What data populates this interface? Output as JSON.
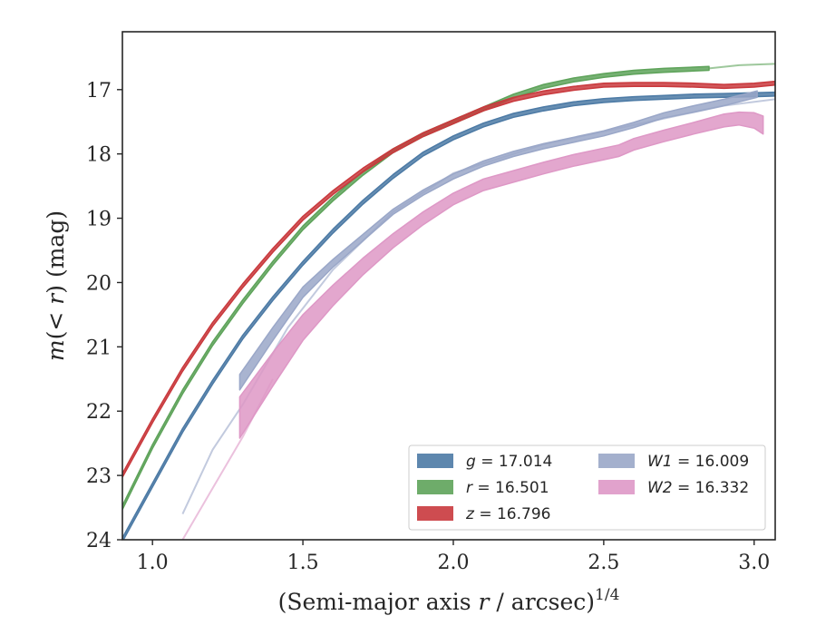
{
  "chart_data": {
    "type": "line",
    "title": "",
    "xlabel": "(Semi-major axis r / arcsec)^1/4",
    "xlabel_parts": {
      "pre": "(Semi-major axis ",
      "var": "r",
      "post": " / arcsec)",
      "sup": "1/4"
    },
    "ylabel": "m(< r) (mag)",
    "ylabel_parts": {
      "var_m": "m",
      "mid": "(< ",
      "var_r": "r",
      "post": ") (mag)"
    },
    "xlim": [
      0.9,
      3.07
    ],
    "ylim": [
      24,
      16.1
    ],
    "y_inverted": true,
    "xticks": [
      1.0,
      1.5,
      2.0,
      2.5,
      3.0
    ],
    "xtick_labels": [
      "1.0",
      "1.5",
      "2.0",
      "2.5",
      "3.0"
    ],
    "yticks": [
      17,
      18,
      19,
      20,
      21,
      22,
      23,
      24
    ],
    "ytick_labels": [
      "17",
      "18",
      "19",
      "20",
      "21",
      "22",
      "23",
      "24"
    ],
    "grid": false,
    "legend_position": "lower-right",
    "colors": {
      "g": "#4c7aa5",
      "r": "#5ea35a",
      "z": "#c9393d",
      "W1": "#9aa7c8",
      "W2": "#de98c6"
    },
    "series": [
      {
        "key": "g",
        "legend_var": "g",
        "legend_value": "17.014",
        "color": "#4c7aa5",
        "x": [
          0.9,
          1.0,
          1.1,
          1.2,
          1.3,
          1.4,
          1.5,
          1.6,
          1.7,
          1.8,
          1.9,
          2.0,
          2.1,
          2.2,
          2.3,
          2.4,
          2.5,
          2.6,
          2.7,
          2.8,
          2.9,
          3.0,
          3.07
        ],
        "y": [
          24.0,
          23.15,
          22.3,
          21.55,
          20.85,
          20.25,
          19.7,
          19.2,
          18.75,
          18.35,
          18.0,
          17.75,
          17.55,
          17.4,
          17.3,
          17.22,
          17.17,
          17.14,
          17.12,
          17.1,
          17.09,
          17.08,
          17.07
        ],
        "band_width": [
          0.03
        ]
      },
      {
        "key": "r",
        "legend_var": "r",
        "legend_value": "16.501",
        "color": "#5ea35a",
        "x": [
          0.9,
          1.0,
          1.1,
          1.2,
          1.3,
          1.4,
          1.5,
          1.6,
          1.7,
          1.8,
          1.9,
          2.0,
          2.1,
          2.2,
          2.3,
          2.4,
          2.5,
          2.6,
          2.7,
          2.85
        ],
        "y": [
          23.5,
          22.55,
          21.7,
          20.95,
          20.3,
          19.7,
          19.15,
          18.7,
          18.3,
          17.95,
          17.7,
          17.5,
          17.3,
          17.1,
          16.95,
          16.85,
          16.78,
          16.73,
          16.7,
          16.67
        ],
        "faint_x": [
          2.85,
          2.95,
          3.07
        ],
        "faint_y": [
          16.67,
          16.62,
          16.6
        ],
        "band_width": [
          0.03
        ]
      },
      {
        "key": "z",
        "legend_var": "z",
        "legend_value": "16.796",
        "color": "#c9393d",
        "x": [
          0.9,
          1.0,
          1.1,
          1.2,
          1.3,
          1.4,
          1.5,
          1.6,
          1.7,
          1.8,
          1.9,
          2.0,
          2.1,
          2.2,
          2.3,
          2.4,
          2.5,
          2.6,
          2.7,
          2.8,
          2.9,
          3.0,
          3.07
        ],
        "y": [
          23.0,
          22.15,
          21.35,
          20.65,
          20.05,
          19.5,
          19.0,
          18.6,
          18.25,
          17.95,
          17.7,
          17.5,
          17.3,
          17.15,
          17.05,
          16.98,
          16.93,
          16.92,
          16.92,
          16.93,
          16.95,
          16.93,
          16.9
        ],
        "band_width": [
          0.03
        ]
      },
      {
        "key": "W1",
        "legend_var": "W1",
        "legend_value": "16.009",
        "color": "#9aa7c8",
        "x": [
          1.29,
          1.4,
          1.5,
          1.6,
          1.7,
          1.8,
          1.9,
          2.0,
          2.1,
          2.2,
          2.3,
          2.4,
          2.5,
          2.6,
          2.7,
          2.8,
          2.9,
          3.01
        ],
        "y": [
          21.55,
          20.8,
          20.15,
          19.7,
          19.3,
          18.9,
          18.6,
          18.35,
          18.15,
          18.0,
          17.88,
          17.78,
          17.68,
          17.55,
          17.4,
          17.3,
          17.2,
          17.07
        ],
        "faint_x": [
          1.1,
          1.2,
          1.3,
          1.45,
          1.6,
          1.8,
          2.0,
          2.3,
          2.6,
          2.9,
          3.07
        ],
        "faint_y": [
          23.6,
          22.6,
          21.9,
          20.7,
          19.8,
          18.9,
          18.3,
          17.85,
          17.55,
          17.25,
          17.15
        ],
        "band_width": [
          0.12,
          0.1,
          0.08,
          0.06,
          0.05,
          0.04,
          0.04,
          0.04,
          0.04,
          0.04,
          0.04,
          0.04,
          0.04,
          0.04,
          0.04,
          0.05,
          0.05,
          0.05
        ]
      },
      {
        "key": "W2",
        "legend_var": "W2",
        "legend_value": "16.332",
        "color": "#de98c6",
        "x": [
          1.29,
          1.4,
          1.5,
          1.6,
          1.7,
          1.8,
          1.9,
          2.0,
          2.1,
          2.2,
          2.3,
          2.4,
          2.5,
          2.55,
          2.6,
          2.7,
          2.8,
          2.9,
          2.95,
          3.0,
          3.03
        ],
        "y": [
          22.1,
          21.35,
          20.7,
          20.2,
          19.75,
          19.35,
          19.0,
          18.7,
          18.48,
          18.35,
          18.22,
          18.1,
          18.0,
          17.95,
          17.85,
          17.72,
          17.6,
          17.48,
          17.45,
          17.48,
          17.55
        ],
        "faint_x": [
          1.1,
          1.2,
          1.3,
          1.4
        ],
        "faint_y": [
          24.0,
          23.2,
          22.4,
          21.5
        ],
        "band_width": [
          0.32,
          0.26,
          0.2,
          0.16,
          0.13,
          0.11,
          0.1,
          0.09,
          0.09,
          0.09,
          0.09,
          0.09,
          0.09,
          0.09,
          0.09,
          0.09,
          0.09,
          0.1,
          0.1,
          0.12,
          0.14
        ]
      }
    ]
  }
}
